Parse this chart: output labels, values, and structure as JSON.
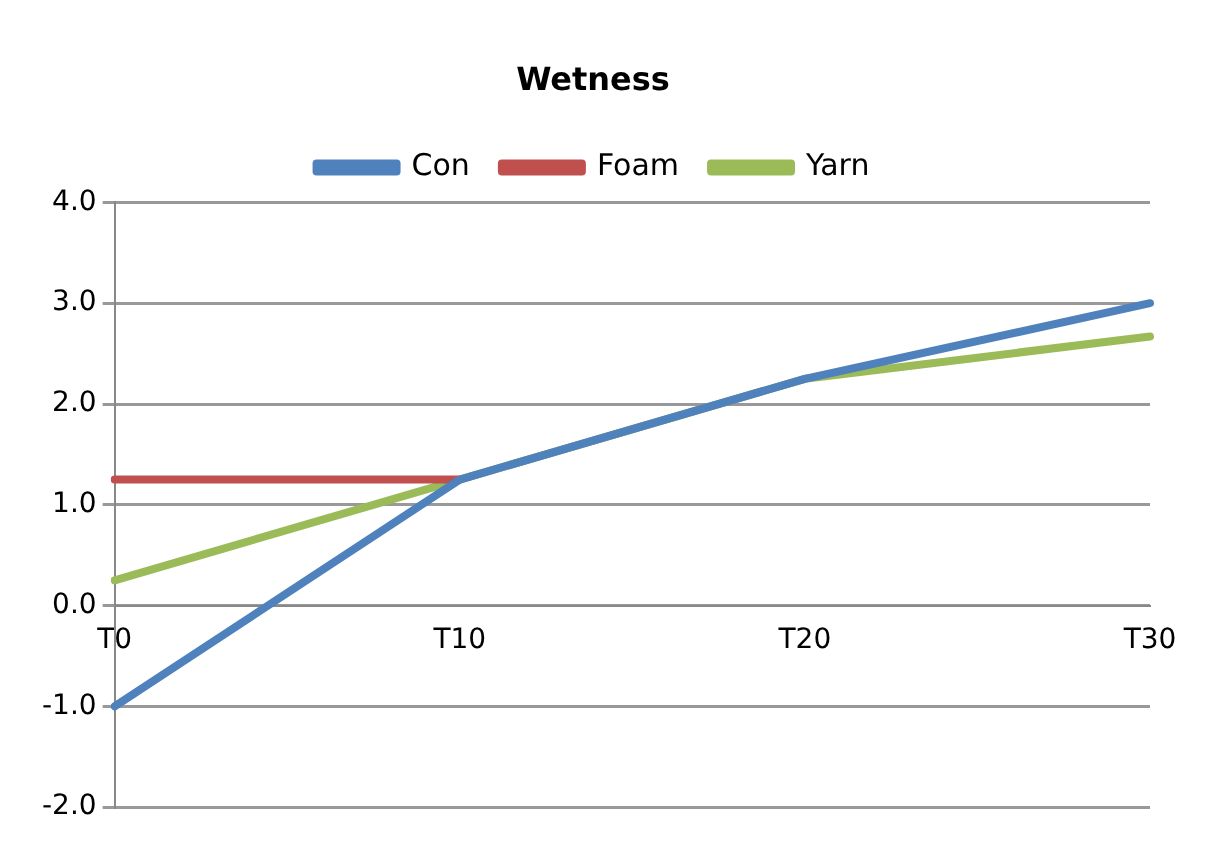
{
  "chart_data": {
    "type": "line",
    "title": "Wetness",
    "categories": [
      "T0",
      "T10",
      "T20",
      "T30"
    ],
    "series": [
      {
        "name": "Con",
        "color": "#4f81bd",
        "values": [
          -1.0,
          1.25,
          2.25,
          3.0
        ]
      },
      {
        "name": "Foam",
        "color": "#c0504d",
        "values": [
          1.25,
          1.25,
          null,
          null
        ]
      },
      {
        "name": "Yarn",
        "color": "#9bbb59",
        "values": [
          0.25,
          1.25,
          2.25,
          2.67
        ]
      }
    ],
    "ylim": [
      -2,
      4
    ],
    "yticks": [
      {
        "value": -2,
        "label": "-2.0"
      },
      {
        "value": -1,
        "label": "-1.0"
      },
      {
        "value": 0,
        "label": "0.0"
      },
      {
        "value": 1,
        "label": "1.0"
      },
      {
        "value": 2,
        "label": "2.0"
      },
      {
        "value": 3,
        "label": "3.0"
      },
      {
        "value": 4,
        "label": "4.0"
      }
    ],
    "grid": "y",
    "legend": "top",
    "marker": "none",
    "line_style": "solid"
  }
}
